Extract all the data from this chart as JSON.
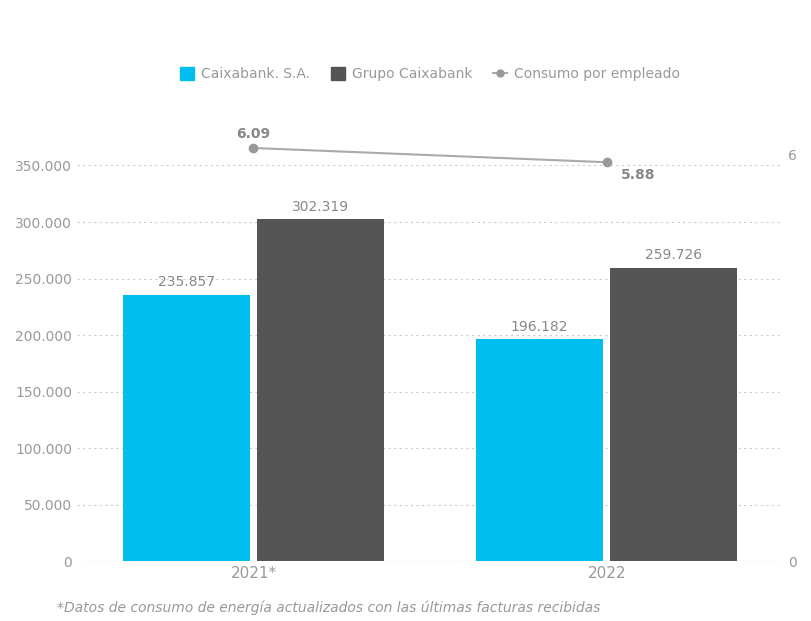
{
  "years": [
    "2021*",
    "2022"
  ],
  "caixabank_sa": [
    235857,
    196182
  ],
  "grupo_caixabank": [
    302319,
    259726
  ],
  "consumo_empleado": [
    6.09,
    5.88
  ],
  "bar_color_sa": "#00BFEE",
  "bar_color_grupo": "#555555",
  "line_color": "#aaaaaa",
  "marker_color": "#999999",
  "bar_width": 0.18,
  "ylim_left": [
    0,
    400000
  ],
  "ylim_right": [
    0,
    6.666
  ],
  "yticks_left": [
    0,
    50000,
    100000,
    150000,
    200000,
    250000,
    300000,
    350000
  ],
  "yticks_right": [
    0,
    6
  ],
  "legend_labels": [
    "Caixabank. S.A.",
    "Grupo Caixabank",
    "Consumo por empleado"
  ],
  "footnote": "*Datos de consumo de energía actualizados con las últimas facturas recibidas",
  "label_color": "#888888",
  "background_color": "#ffffff",
  "grid_color": "#cccccc",
  "tick_label_color": "#999999",
  "fontsize_labels": 10,
  "fontsize_ticks": 10,
  "fontsize_footnote": 10,
  "fontsize_annotations": 10
}
